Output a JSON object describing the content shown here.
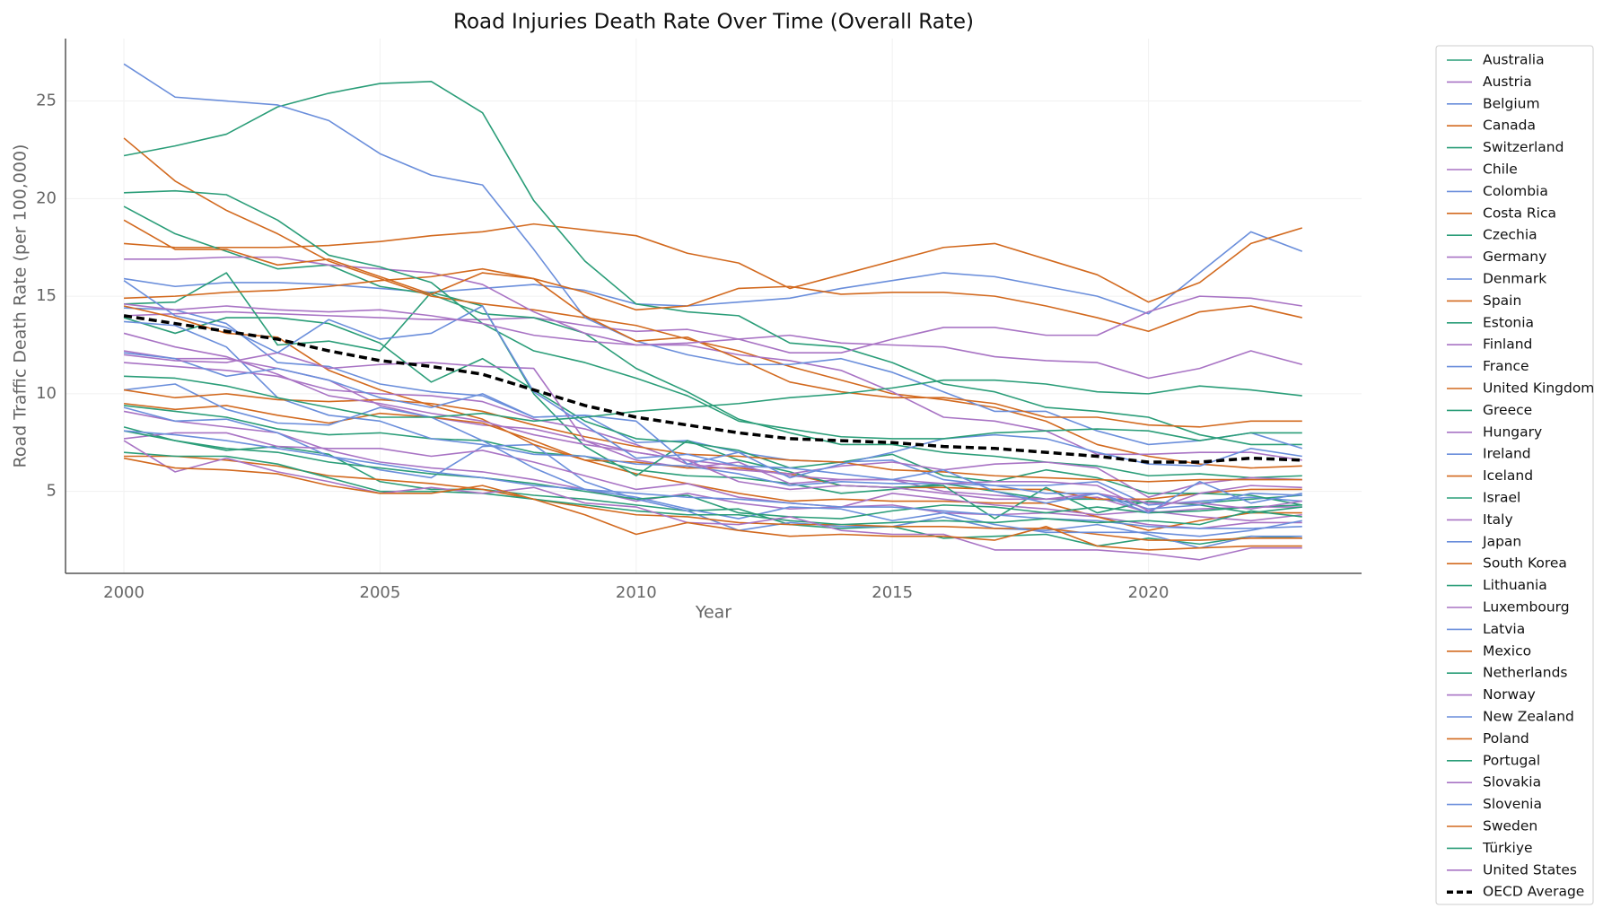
{
  "chart_data": {
    "type": "line",
    "title": "Road Injuries Death Rate Over Time (Overall Rate)",
    "x_label": "Year",
    "y_label": "Road Traffic Death Rate (per 100,000)",
    "x": [
      2000,
      2001,
      2002,
      2003,
      2004,
      2005,
      2006,
      2007,
      2008,
      2009,
      2010,
      2011,
      2012,
      2013,
      2014,
      2015,
      2016,
      2017,
      2018,
      2019,
      2020,
      2021,
      2022,
      2023
    ],
    "xlim": [
      1998.86,
      2024.16
    ],
    "ylim": [
      0.8,
      28.2
    ],
    "xticks": [
      2000,
      2005,
      2010,
      2015,
      2020
    ],
    "yticks": [
      5,
      10,
      15,
      20,
      25
    ],
    "grid": true,
    "legend": "outside-right",
    "series": [
      {
        "name": "Australia",
        "color": "#2a9d78",
        "values": [
          9.4,
          9.1,
          8.8,
          8.2,
          7.9,
          8.0,
          7.7,
          7.6,
          7.0,
          6.8,
          6.1,
          5.8,
          5.7,
          5.4,
          4.9,
          5.1,
          5.4,
          5.0,
          4.6,
          4.6,
          4.4,
          4.4,
          4.6,
          4.8
        ]
      },
      {
        "name": "Austria",
        "color": "#a873c4",
        "values": [
          12.2,
          11.8,
          11.8,
          11.3,
          10.7,
          9.4,
          8.8,
          8.4,
          8.2,
          7.6,
          6.6,
          6.2,
          6.5,
          5.4,
          5.6,
          5.6,
          5.0,
          4.8,
          4.6,
          4.7,
          3.9,
          4.1,
          4.2,
          4.2
        ]
      },
      {
        "name": "Belgium",
        "color": "#6a8edb",
        "values": [
          14.4,
          14.3,
          13.6,
          11.6,
          11.4,
          10.5,
          10.1,
          9.9,
          8.8,
          8.9,
          7.5,
          7.6,
          7.0,
          6.6,
          6.5,
          6.6,
          5.6,
          5.3,
          5.3,
          5.5,
          4.3,
          4.5,
          4.7,
          4.5
        ]
      },
      {
        "name": "Canada",
        "color": "#d2691e",
        "values": [
          9.5,
          9.2,
          9.4,
          8.9,
          8.5,
          9.0,
          8.8,
          8.5,
          7.6,
          6.6,
          6.5,
          6.2,
          6.2,
          5.9,
          5.3,
          5.2,
          5.2,
          5.1,
          5.1,
          4.6,
          4.6,
          4.9,
          5.1,
          5.1
        ]
      },
      {
        "name": "Switzerland",
        "color": "#2a9d78",
        "values": [
          8.3,
          7.6,
          7.1,
          7.3,
          6.9,
          5.5,
          5.1,
          5.1,
          4.8,
          4.6,
          4.3,
          4.0,
          4.1,
          3.3,
          3.1,
          3.2,
          2.6,
          2.7,
          2.8,
          2.2,
          2.6,
          2.3,
          2.7,
          2.6
        ]
      },
      {
        "name": "Chile",
        "color": "#a873c4",
        "values": [
          14.0,
          14.1,
          14.2,
          14.1,
          14.0,
          13.9,
          13.8,
          13.8,
          13.9,
          13.5,
          13.2,
          13.3,
          12.8,
          13.0,
          12.6,
          12.5,
          12.4,
          11.9,
          11.7,
          11.6,
          10.8,
          11.3,
          12.2,
          11.5
        ]
      },
      {
        "name": "Colombia",
        "color": "#6a8edb",
        "values": [
          15.9,
          15.5,
          15.7,
          15.7,
          15.6,
          15.4,
          15.2,
          15.4,
          15.6,
          15.3,
          14.6,
          14.5,
          14.7,
          14.9,
          15.4,
          15.8,
          16.2,
          16.0,
          15.5,
          15.0,
          14.1,
          16.2,
          18.3,
          17.3
        ]
      },
      {
        "name": "Costa Rica",
        "color": "#d2691e",
        "values": [
          17.7,
          17.5,
          17.5,
          17.5,
          17.6,
          17.8,
          18.1,
          18.3,
          18.7,
          18.4,
          18.1,
          17.2,
          16.7,
          15.4,
          16.1,
          16.8,
          17.5,
          17.7,
          16.9,
          16.1,
          14.7,
          15.7,
          17.7,
          18.5
        ]
      },
      {
        "name": "Czechia",
        "color": "#2a9d78",
        "values": [
          13.9,
          13.1,
          13.9,
          13.9,
          13.6,
          12.6,
          10.6,
          11.8,
          10.2,
          8.6,
          7.7,
          7.5,
          7.1,
          6.2,
          6.5,
          6.9,
          5.8,
          5.5,
          6.1,
          5.7,
          4.9,
          4.9,
          4.8,
          4.3
        ]
      },
      {
        "name": "Germany",
        "color": "#a873c4",
        "values": [
          9.1,
          8.6,
          8.3,
          8.0,
          7.1,
          6.5,
          6.2,
          6.0,
          5.6,
          5.1,
          4.5,
          4.9,
          4.4,
          4.1,
          4.2,
          4.3,
          3.9,
          3.8,
          3.9,
          3.7,
          3.3,
          3.1,
          3.4,
          3.4
        ]
      },
      {
        "name": "Denmark",
        "color": "#6a8edb",
        "values": [
          9.3,
          8.6,
          8.7,
          8.0,
          6.8,
          6.1,
          5.7,
          7.3,
          7.4,
          5.5,
          4.6,
          4.0,
          3.0,
          3.4,
          3.2,
          3.2,
          3.7,
          3.1,
          3.0,
          3.3,
          2.8,
          2.1,
          2.7,
          2.7
        ]
      },
      {
        "name": "Spain",
        "color": "#d2691e",
        "values": [
          14.5,
          13.9,
          13.1,
          12.9,
          11.2,
          10.2,
          9.4,
          8.7,
          7.4,
          6.6,
          5.9,
          5.4,
          4.9,
          4.5,
          4.6,
          4.5,
          4.5,
          4.4,
          4.4,
          3.7,
          3.0,
          3.5,
          3.9,
          3.9
        ]
      },
      {
        "name": "Estonia",
        "color": "#2a9d78",
        "values": [
          14.6,
          14.7,
          16.2,
          12.5,
          12.7,
          12.2,
          15.2,
          14.5,
          10.0,
          7.3,
          5.8,
          7.6,
          6.6,
          6.0,
          5.3,
          5.2,
          5.3,
          3.6,
          5.2,
          3.9,
          4.5,
          4.3,
          3.9,
          4.2
        ]
      },
      {
        "name": "Finland",
        "color": "#a873c4",
        "values": [
          7.7,
          8.0,
          8.0,
          7.3,
          7.2,
          7.2,
          6.8,
          7.1,
          6.5,
          5.8,
          5.1,
          5.4,
          4.7,
          4.4,
          4.2,
          4.9,
          4.6,
          4.3,
          4.1,
          3.8,
          4.0,
          3.7,
          3.5,
          3.8
        ]
      },
      {
        "name": "France",
        "color": "#6a8edb",
        "values": [
          13.7,
          13.5,
          12.4,
          9.8,
          8.9,
          8.6,
          7.7,
          7.4,
          6.9,
          6.8,
          6.4,
          6.3,
          5.9,
          5.3,
          5.5,
          5.4,
          5.4,
          5.3,
          4.9,
          4.9,
          4.1,
          4.3,
          4.9,
          4.8
        ]
      },
      {
        "name": "United Kingdom",
        "color": "#d2691e",
        "values": [
          6.8,
          6.8,
          6.6,
          6.3,
          5.8,
          5.6,
          5.4,
          5.1,
          4.6,
          4.2,
          3.8,
          3.7,
          3.4,
          3.3,
          3.3,
          3.2,
          3.2,
          3.1,
          3.1,
          2.8,
          2.5,
          2.5,
          2.6,
          2.6
        ]
      },
      {
        "name": "Greece",
        "color": "#2a9d78",
        "values": [
          19.6,
          18.2,
          17.3,
          16.4,
          16.6,
          15.5,
          15.1,
          14.1,
          13.9,
          13.1,
          11.3,
          10.1,
          8.7,
          8.0,
          7.4,
          7.4,
          7.0,
          6.8,
          6.5,
          6.3,
          5.8,
          5.9,
          5.7,
          5.8
        ]
      },
      {
        "name": "Hungary",
        "color": "#a873c4",
        "values": [
          11.6,
          11.4,
          11.2,
          10.9,
          10.2,
          10.0,
          9.9,
          9.6,
          8.7,
          8.2,
          7.4,
          6.4,
          6.1,
          5.9,
          6.3,
          6.5,
          6.1,
          6.4,
          6.5,
          6.2,
          4.7,
          5.4,
          5.7,
          5.6
        ]
      },
      {
        "name": "Ireland",
        "color": "#6a8edb",
        "values": [
          10.2,
          10.5,
          9.2,
          8.5,
          8.4,
          9.3,
          8.8,
          7.6,
          6.2,
          5.1,
          4.7,
          4.1,
          3.6,
          4.2,
          4.1,
          3.5,
          3.9,
          3.3,
          2.9,
          2.9,
          2.9,
          2.7,
          3.0,
          3.5
        ]
      },
      {
        "name": "Iceland",
        "color": "#d2691e",
        "values": [
          10.2,
          9.8,
          10.0,
          9.7,
          9.6,
          9.7,
          9.5,
          9.1,
          8.4,
          7.8,
          7.3,
          6.9,
          6.8,
          6.6,
          6.5,
          6.1,
          6.0,
          5.8,
          5.7,
          5.6,
          5.5,
          5.6,
          5.6,
          5.6
        ]
      },
      {
        "name": "Israel",
        "color": "#2a9d78",
        "values": [
          8.1,
          7.6,
          7.2,
          7.0,
          6.5,
          6.2,
          5.9,
          5.7,
          5.4,
          5.0,
          4.6,
          4.8,
          3.9,
          3.7,
          3.6,
          4.0,
          4.3,
          4.2,
          3.9,
          4.2,
          3.9,
          4.0,
          4.2,
          4.3
        ]
      },
      {
        "name": "Italy",
        "color": "#a873c4",
        "values": [
          13.1,
          12.4,
          11.9,
          11.0,
          9.9,
          9.5,
          9.0,
          8.6,
          7.9,
          7.4,
          7.0,
          6.6,
          6.3,
          5.8,
          5.6,
          5.6,
          5.4,
          5.5,
          5.5,
          5.3,
          4.0,
          4.9,
          5.3,
          5.2
        ]
      },
      {
        "name": "Japan",
        "color": "#6a8edb",
        "values": [
          8.1,
          7.9,
          7.6,
          7.2,
          6.8,
          6.4,
          6.0,
          5.7,
          5.3,
          5.1,
          4.9,
          4.7,
          4.6,
          4.4,
          4.2,
          4.2,
          4.0,
          3.8,
          3.6,
          3.5,
          3.2,
          3.1,
          3.1,
          3.2
        ]
      },
      {
        "name": "South Korea",
        "color": "#d2691e",
        "values": [
          23.1,
          20.9,
          19.4,
          18.2,
          16.8,
          15.9,
          15.0,
          14.6,
          14.3,
          13.9,
          13.5,
          12.8,
          12.2,
          11.4,
          10.7,
          10.0,
          9.7,
          9.3,
          8.6,
          7.4,
          6.8,
          6.4,
          6.2,
          6.3
        ]
      },
      {
        "name": "Lithuania",
        "color": "#2a9d78",
        "values": [
          22.2,
          22.7,
          23.3,
          24.7,
          25.4,
          25.9,
          26.0,
          24.4,
          19.9,
          16.8,
          14.6,
          14.2,
          14.0,
          12.6,
          12.4,
          11.6,
          10.5,
          10.1,
          9.3,
          9.1,
          8.8,
          7.9,
          7.4,
          7.4
        ]
      },
      {
        "name": "Luxembourg",
        "color": "#a873c4",
        "values": [
          16.9,
          16.9,
          17.0,
          17.0,
          16.6,
          16.4,
          16.2,
          15.6,
          14.2,
          13.1,
          12.5,
          12.5,
          12.0,
          11.7,
          11.2,
          10.1,
          8.8,
          8.6,
          8.1,
          6.9,
          6.9,
          7.0,
          7.0,
          6.6
        ]
      },
      {
        "name": "Latvia",
        "color": "#6a8edb",
        "values": [
          26.9,
          25.2,
          25.0,
          24.8,
          24.0,
          22.3,
          21.2,
          20.7,
          17.4,
          13.9,
          12.7,
          12.0,
          11.5,
          11.5,
          11.8,
          11.1,
          10.1,
          9.1,
          9.1,
          8.1,
          7.4,
          7.6,
          8.0,
          7.2
        ]
      },
      {
        "name": "Mexico",
        "color": "#d2691e",
        "values": [
          14.9,
          15.0,
          15.2,
          15.3,
          15.5,
          15.8,
          16.0,
          16.4,
          15.9,
          15.2,
          14.3,
          14.5,
          15.4,
          15.5,
          15.1,
          15.2,
          15.2,
          15.0,
          14.5,
          13.9,
          13.2,
          14.2,
          14.5,
          13.9
        ]
      },
      {
        "name": "Netherlands",
        "color": "#2a9d78",
        "values": [
          7.0,
          6.8,
          6.8,
          6.4,
          5.7,
          5.0,
          5.0,
          4.9,
          4.6,
          4.3,
          4.0,
          3.8,
          3.8,
          3.5,
          3.3,
          3.4,
          3.5,
          3.4,
          3.6,
          3.4,
          3.5,
          3.3,
          4.0,
          3.7
        ]
      },
      {
        "name": "Norway",
        "color": "#a873c4",
        "values": [
          7.6,
          6.0,
          6.7,
          6.0,
          5.5,
          4.9,
          5.2,
          4.9,
          5.2,
          4.4,
          4.2,
          3.4,
          3.3,
          3.7,
          3.0,
          2.8,
          2.8,
          2.0,
          2.0,
          2.0,
          1.8,
          1.5,
          2.1,
          2.1
        ]
      },
      {
        "name": "New Zealand",
        "color": "#6a8edb",
        "values": [
          12.1,
          11.8,
          10.9,
          11.3,
          10.7,
          9.8,
          9.3,
          10.0,
          8.8,
          8.9,
          8.6,
          6.4,
          7.0,
          5.7,
          6.4,
          7.0,
          7.7,
          7.9,
          7.7,
          7.0,
          6.4,
          6.3,
          7.2,
          6.8
        ]
      },
      {
        "name": "Poland",
        "color": "#d2691e",
        "values": [
          18.9,
          17.4,
          17.4,
          16.6,
          16.9,
          16.0,
          15.1,
          16.2,
          15.9,
          14.0,
          12.7,
          12.9,
          11.8,
          10.6,
          10.1,
          9.8,
          9.8,
          9.5,
          8.8,
          8.8,
          8.4,
          8.3,
          8.6,
          8.6
        ]
      },
      {
        "name": "Portugal",
        "color": "#2a9d78",
        "values": [
          20.3,
          20.4,
          20.2,
          18.9,
          17.1,
          16.5,
          15.7,
          13.6,
          12.2,
          11.6,
          10.8,
          9.9,
          8.6,
          8.2,
          7.8,
          7.7,
          7.7,
          8.0,
          8.1,
          8.2,
          8.1,
          7.6,
          8.0,
          8.0
        ]
      },
      {
        "name": "Slovakia",
        "color": "#a873c4",
        "values": [
          12.0,
          11.7,
          11.6,
          12.1,
          11.3,
          11.5,
          11.6,
          11.4,
          11.3,
          7.6,
          7.0,
          6.6,
          5.5,
          5.1,
          5.3,
          5.2,
          4.9,
          4.6,
          4.6,
          4.9,
          4.4,
          4.4,
          4.1,
          4.5
        ]
      },
      {
        "name": "Slovenia",
        "color": "#6a8edb",
        "values": [
          15.8,
          14.0,
          13.4,
          12.1,
          13.8,
          12.8,
          13.1,
          14.5,
          10.1,
          8.4,
          6.7,
          6.9,
          6.3,
          6.2,
          5.9,
          5.6,
          6.1,
          5.0,
          4.4,
          4.9,
          3.9,
          5.5,
          4.4,
          4.9
        ]
      },
      {
        "name": "Sweden",
        "color": "#d2691e",
        "values": [
          6.7,
          6.2,
          6.1,
          5.9,
          5.3,
          4.9,
          4.9,
          5.3,
          4.6,
          3.8,
          2.8,
          3.4,
          3.0,
          2.7,
          2.8,
          2.7,
          2.7,
          2.5,
          3.2,
          2.2,
          2.0,
          2.1,
          2.2,
          2.2
        ]
      },
      {
        "name": "Türkiye",
        "color": "#2a9d78",
        "values": [
          10.9,
          10.8,
          10.4,
          9.8,
          9.3,
          8.8,
          8.8,
          9.0,
          8.6,
          8.8,
          9.1,
          9.3,
          9.5,
          9.8,
          10.0,
          10.3,
          10.7,
          10.7,
          10.5,
          10.1,
          10.0,
          10.4,
          10.2,
          9.9
        ]
      },
      {
        "name": "United States",
        "color": "#a873c4",
        "values": [
          14.6,
          14.3,
          14.5,
          14.3,
          14.2,
          14.3,
          14.0,
          13.6,
          13.0,
          12.7,
          12.5,
          12.6,
          12.8,
          12.1,
          12.1,
          12.8,
          13.4,
          13.4,
          13.0,
          13.0,
          14.2,
          15.0,
          14.9,
          14.5
        ]
      },
      {
        "name": "OECD Average",
        "color": "#000000",
        "dashed": true,
        "values": [
          14.0,
          13.6,
          13.2,
          12.8,
          12.2,
          11.7,
          11.4,
          11.0,
          10.2,
          9.4,
          8.8,
          8.4,
          8.0,
          7.7,
          7.6,
          7.5,
          7.3,
          7.2,
          7.0,
          6.8,
          6.5,
          6.5,
          6.7,
          6.6
        ]
      }
    ]
  }
}
